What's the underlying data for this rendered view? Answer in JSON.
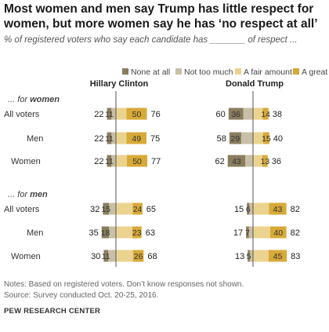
{
  "title": "Most women and men say Trump has little respect for women, but more women say he has ‘no respect at all’",
  "subtitle": "% of registered voters who say each candidate has _______ of respect ...",
  "notes": {
    "note": "Notes: Based on registered voters. Don’t know responses not shown.",
    "source": "Source: Survey conducted Oct. 20-25, 2016.",
    "brand": "PEW RESEARCH CENTER"
  },
  "chart_data": {
    "type": "bar",
    "orientation": "horizontal-diverging",
    "legend": [
      "None at all",
      "Not too much",
      "A fair amount",
      "A great deal"
    ],
    "legend_position": "top",
    "colors": {
      "none_at_all": "#8a7d5e",
      "not_too_much": "#c8bfa6",
      "a_fair_amount": "#ebd38f",
      "a_great_deal": "#d7a937"
    },
    "panels": [
      "Hillary Clinton",
      "Donald Trump"
    ],
    "groups": [
      {
        "label": "... for women",
        "label_prefix": "... for ",
        "label_emph": "women",
        "rows": [
          {
            "label": "All voters",
            "clinton": {
              "none_at_all": 11,
              "not_too_much": 11,
              "not_net": 22,
              "a_fair_amount": 26,
              "a_great_deal": 50,
              "fair_net": 76
            },
            "trump": {
              "none_at_all": 36,
              "not_too_much": 24,
              "not_net": 60,
              "a_fair_amount": 24,
              "a_great_deal": 14,
              "fair_net": 38
            }
          },
          {
            "label": "Men",
            "clinton": {
              "none_at_all": 11,
              "not_too_much": 11,
              "not_net": 22,
              "a_fair_amount": 26,
              "a_great_deal": 49,
              "fair_net": 75
            },
            "trump": {
              "none_at_all": 29,
              "not_too_much": 29,
              "not_net": 58,
              "a_fair_amount": 25,
              "a_great_deal": 15,
              "fair_net": 40
            }
          },
          {
            "label": "Women",
            "clinton": {
              "none_at_all": 11,
              "not_too_much": 11,
              "not_net": 22,
              "a_fair_amount": 27,
              "a_great_deal": 50,
              "fair_net": 77
            },
            "trump": {
              "none_at_all": 43,
              "not_too_much": 19,
              "not_net": 62,
              "a_fair_amount": 23,
              "a_great_deal": 13,
              "fair_net": 36
            }
          }
        ]
      },
      {
        "label": "... for men",
        "label_prefix": "... for ",
        "label_emph": "men",
        "rows": [
          {
            "label": "All voters",
            "clinton": {
              "none_at_all": 15,
              "not_too_much": 17,
              "not_net": 32,
              "a_fair_amount": 41,
              "a_great_deal": 24,
              "fair_net": 65
            },
            "trump": {
              "none_at_all": 6,
              "not_too_much": 9,
              "not_net": 15,
              "a_fair_amount": 39,
              "a_great_deal": 43,
              "fair_net": 82
            }
          },
          {
            "label": "Men",
            "clinton": {
              "none_at_all": 18,
              "not_too_much": 17,
              "not_net": 35,
              "a_fair_amount": 40,
              "a_great_deal": 23,
              "fair_net": 63
            },
            "trump": {
              "none_at_all": 7,
              "not_too_much": 10,
              "not_net": 17,
              "a_fair_amount": 42,
              "a_great_deal": 40,
              "fair_net": 82
            }
          },
          {
            "label": "Women",
            "clinton": {
              "none_at_all": 11,
              "not_too_much": 19,
              "not_net": 30,
              "a_fair_amount": 42,
              "a_great_deal": 26,
              "fair_net": 68
            },
            "trump": {
              "none_at_all": 5,
              "not_too_much": 8,
              "not_net": 13,
              "a_fair_amount": 38,
              "a_great_deal": 45,
              "fair_net": 83
            }
          }
        ]
      }
    ]
  }
}
